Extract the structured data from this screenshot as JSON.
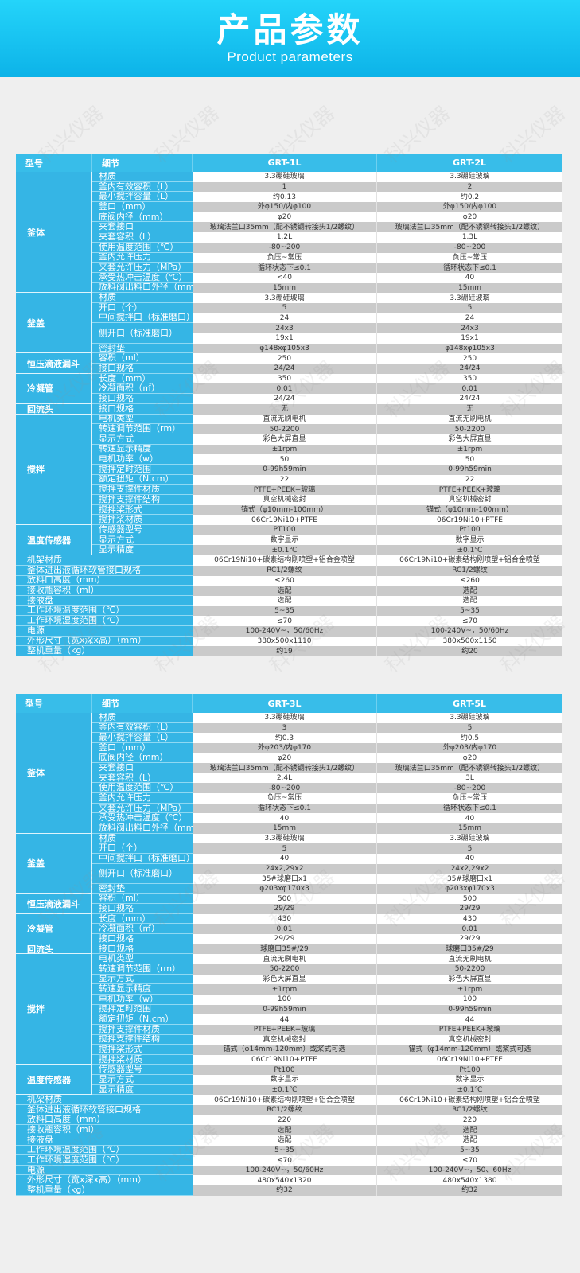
{
  "banner": {
    "title": "产品参数",
    "subtitle": "Product parameters"
  },
  "watermark": "科兴仪器",
  "colors": {
    "banner": "#1fc6f2",
    "header": "#38bde9",
    "label_cell": "#35b5e5",
    "gray_row": "#cacaca",
    "background": "#efefef"
  },
  "tables": [
    {
      "header": {
        "model": "型号",
        "detail": "细节",
        "products": [
          "GRT-1L",
          "GRT-2L"
        ]
      },
      "groups": [
        {
          "name": "釜体",
          "rows": [
            {
              "label": "材质",
              "values": [
                "3.3硼硅玻璃",
                "3.3硼硅玻璃"
              ]
            },
            {
              "label": "釜内有效容积（L）",
              "values": [
                "1",
                "2"
              ]
            },
            {
              "label": "最小搅拌容量（L）",
              "values": [
                "约0.13",
                "约0.2"
              ]
            },
            {
              "label": "釜口（mm）",
              "values": [
                "外φ150/内φ100",
                "外φ150/内φ100"
              ]
            },
            {
              "label": "底阀内径（mm）",
              "values": [
                "φ20",
                "φ20"
              ]
            },
            {
              "label": "夹套接口",
              "values": [
                "玻璃法兰口35mm（配不锈钢转接头1/2螺纹）",
                "玻璃法兰口35mm（配不锈钢转接头1/2螺纹）"
              ]
            },
            {
              "label": "夹套容积（L）",
              "values": [
                "1.2L",
                "1.3L"
              ]
            },
            {
              "label": "使用温度范围（℃）",
              "values": [
                "-80~200",
                "-80~200"
              ]
            },
            {
              "label": "釜内允许压力",
              "values": [
                "负压~常压",
                "负压~常压"
              ]
            },
            {
              "label": "夹套允许压力（MPa）",
              "values": [
                "循环状态下≤0.1",
                "循环状态下≤0.1"
              ]
            },
            {
              "label": "承受热冲击温度（℃）",
              "values": [
                "<40",
                "40"
              ]
            },
            {
              "label": "放料阀出料口外径（mm）",
              "values": [
                "15mm",
                "15mm"
              ]
            }
          ]
        },
        {
          "name": "釜盖",
          "rows": [
            {
              "label": "材质",
              "values": [
                "3.3硼硅玻璃",
                "3.3硼硅玻璃"
              ]
            },
            {
              "label": "开口（个）",
              "values": [
                "5",
                "5"
              ]
            },
            {
              "label": "中间搅拌口（标准磨口）",
              "values": [
                "24",
                "24"
              ]
            },
            {
              "label": "侧开口（标准磨口）",
              "values": [
                [
                  "24x3",
                  "19x1"
                ],
                [
                  "24x3",
                  "19x1"
                ]
              ]
            },
            {
              "label": "密封垫",
              "values": [
                "φ148xφ105x3",
                "φ148xφ105x3"
              ]
            }
          ]
        },
        {
          "name": "恒压滴液漏斗",
          "rows": [
            {
              "label": "容积（ml）",
              "values": [
                "250",
                "250"
              ]
            },
            {
              "label": "接口规格",
              "values": [
                "24/24",
                "24/24"
              ]
            }
          ]
        },
        {
          "name": "冷凝管",
          "rows": [
            {
              "label": "长度（mm）",
              "values": [
                "350",
                "350"
              ]
            },
            {
              "label": "冷凝面积（㎡）",
              "values": [
                "0.01",
                "0.01"
              ]
            },
            {
              "label": "接口规格",
              "values": [
                "24/24",
                "24/24"
              ]
            }
          ]
        },
        {
          "name": "回流头",
          "rows": [
            {
              "label": "接口规格",
              "values": [
                "无",
                "无"
              ]
            }
          ]
        },
        {
          "name": "搅拌",
          "rows": [
            {
              "label": "电机类型",
              "values": [
                "直流无刷电机",
                "直流无刷电机"
              ]
            },
            {
              "label": "转速调节范围（rm）",
              "values": [
                "50-2200",
                "50-2200"
              ]
            },
            {
              "label": "显示方式",
              "values": [
                "彩色大屏直显",
                "彩色大屏直显"
              ]
            },
            {
              "label": "转速显示精度",
              "values": [
                "±1rpm",
                "±1rpm"
              ]
            },
            {
              "label": "电机功率（w）",
              "values": [
                "50",
                "50"
              ]
            },
            {
              "label": "搅拌定时范围",
              "values": [
                "0-99h59min",
                "0-99h59min"
              ]
            },
            {
              "label": "额定扭矩（N.cm）",
              "values": [
                "22",
                "22"
              ]
            },
            {
              "label": "搅拌支撑件材质",
              "values": [
                "PTFE+PEEK+玻璃",
                "PTFE+PEEK+玻璃"
              ]
            },
            {
              "label": "搅拌支撑件结构",
              "values": [
                "真空机械密封",
                "真空机械密封"
              ]
            },
            {
              "label": "搅拌桨形式",
              "values": [
                "锚式（φ10mm-100mm）",
                "锚式（φ10mm-100mm）"
              ]
            },
            {
              "label": "搅拌桨材质",
              "values": [
                "06Cr19Ni10+PTFE",
                "06Cr19Ni10+PTFE"
              ]
            }
          ]
        },
        {
          "name": "温度传感器",
          "rows": [
            {
              "label": "传感器型号",
              "values": [
                "PT100",
                "Pt100"
              ]
            },
            {
              "label": "显示方式",
              "values": [
                "数字显示",
                "数字显示"
              ]
            },
            {
              "label": "显示精度",
              "values": [
                "±0.1℃",
                "±0.1℃"
              ]
            }
          ]
        },
        {
          "name": "",
          "rows": [
            {
              "label": "机架材质",
              "values": [
                "06Cr19Ni10+碳素结构刚喷塑+铝合金喷塑",
                "06Cr19Ni10+碳素结构刚喷塑+铝合金喷塑"
              ]
            },
            {
              "label": "釜体进出液循环软管接口规格",
              "values": [
                "RC1/2螺纹",
                "RC1/2螺纹"
              ]
            },
            {
              "label": "放料口高度（mm）",
              "values": [
                "≤260",
                "≤260"
              ]
            },
            {
              "label": "接收瓶容积（ml）",
              "values": [
                "选配",
                "选配"
              ]
            },
            {
              "label": "接液盘",
              "values": [
                "选配",
                "选配"
              ]
            },
            {
              "label": "工作环境温度范围（℃）",
              "values": [
                "5~35",
                "5~35"
              ]
            },
            {
              "label": "工作环境湿度范围（℃）",
              "values": [
                "≤70",
                "≤70"
              ]
            },
            {
              "label": "电源",
              "values": [
                "100-240V~，50/60Hz",
                "100-240V~，50/60Hz"
              ]
            },
            {
              "label": "外形尺寸（宽x深x高）（mm）",
              "values": [
                "380x500x1110",
                "380x500x1150"
              ]
            },
            {
              "label": "整机重量（kg）",
              "values": [
                "约19",
                "约20"
              ]
            }
          ]
        }
      ]
    },
    {
      "header": {
        "model": "型号",
        "detail": "细节",
        "products": [
          "GRT-3L",
          "GRT-5L"
        ]
      },
      "groups": [
        {
          "name": "釜体",
          "rows": [
            {
              "label": "材质",
              "values": [
                "3.3硼硅玻璃",
                "3.3硼硅玻璃"
              ]
            },
            {
              "label": "釜内有效容积（L）",
              "values": [
                "3",
                "5"
              ]
            },
            {
              "label": "最小搅拌容量（L）",
              "values": [
                "约0.3",
                "约0.5"
              ]
            },
            {
              "label": "釜口（mm）",
              "values": [
                "外φ203/内φ170",
                "外φ203/内φ170"
              ]
            },
            {
              "label": "底阀内径（mm）",
              "values": [
                "φ20",
                "φ20"
              ]
            },
            {
              "label": "夹套接口",
              "values": [
                "玻璃法兰口35mm（配不锈钢转接头1/2螺纹）",
                "玻璃法兰口35mm（配不锈钢转接头1/2螺纹）"
              ]
            },
            {
              "label": "夹套容积（L）",
              "values": [
                "2.4L",
                "3L"
              ]
            },
            {
              "label": "使用温度范围（℃）",
              "values": [
                "-80~200",
                "-80~200"
              ]
            },
            {
              "label": "釜内允许压力",
              "values": [
                "负压~常压",
                "负压~常压"
              ]
            },
            {
              "label": "夹套允许压力（MPa）",
              "values": [
                "循环状态下≤0.1",
                "循环状态下≤0.1"
              ]
            },
            {
              "label": "承受热冲击温度（℃）",
              "values": [
                "40",
                "40"
              ]
            },
            {
              "label": "放料阀出料口外径（mm）",
              "values": [
                "15mm",
                "15mm"
              ]
            }
          ]
        },
        {
          "name": "釜盖",
          "rows": [
            {
              "label": "材质",
              "values": [
                "3.3硼硅玻璃",
                "3.3硼硅玻璃"
              ]
            },
            {
              "label": "开口（个）",
              "values": [
                "5",
                "5"
              ]
            },
            {
              "label": "中间搅拌口（标准磨口）",
              "values": [
                "40",
                "40"
              ]
            },
            {
              "label": "侧开口（标准磨口）",
              "values": [
                [
                  "24x2,29x2",
                  "35#球磨口x1"
                ],
                [
                  "24x2,29x2",
                  "35#球磨口x1"
                ]
              ]
            },
            {
              "label": "密封垫",
              "values": [
                "φ203xφ170x3",
                "φ203xφ170x3"
              ]
            }
          ]
        },
        {
          "name": "恒压滴液漏斗",
          "rows": [
            {
              "label": "容积（ml）",
              "values": [
                "500",
                "500"
              ]
            },
            {
              "label": "接口规格",
              "values": [
                "29/29",
                "29/29"
              ]
            }
          ]
        },
        {
          "name": "冷凝管",
          "rows": [
            {
              "label": "长度（mm）",
              "values": [
                "430",
                "430"
              ]
            },
            {
              "label": "冷凝面积（㎡）",
              "values": [
                "0.01",
                "0.01"
              ]
            },
            {
              "label": "接口规格",
              "values": [
                "29/29",
                "29/29"
              ]
            }
          ]
        },
        {
          "name": "回流头",
          "rows": [
            {
              "label": "接口规格",
              "values": [
                "球磨口35#/29",
                "球磨口35#/29"
              ]
            }
          ]
        },
        {
          "name": "搅拌",
          "rows": [
            {
              "label": "电机类型",
              "values": [
                "直流无刷电机",
                "直流无刷电机"
              ]
            },
            {
              "label": "转速调节范围（rm）",
              "values": [
                "50-2200",
                "50-2200"
              ]
            },
            {
              "label": "显示方式",
              "values": [
                "彩色大屏直显",
                "彩色大屏直显"
              ]
            },
            {
              "label": "转速显示精度",
              "values": [
                "±1rpm",
                "±1rpm"
              ]
            },
            {
              "label": "电机功率（w）",
              "values": [
                "100",
                "100"
              ]
            },
            {
              "label": "搅拌定时范围",
              "values": [
                "0-99h59min",
                "0-99h59min"
              ]
            },
            {
              "label": "额定扭矩（N.cm）",
              "values": [
                "44",
                "44"
              ]
            },
            {
              "label": "搅拌支撑件材质",
              "values": [
                "PTFE+PEEK+玻璃",
                "PTFE+PEEK+玻璃"
              ]
            },
            {
              "label": "搅拌支撑件结构",
              "values": [
                "真空机械密封",
                "真空机械密封"
              ]
            },
            {
              "label": "搅拌桨形式",
              "values": [
                "锚式（φ14mm-120mm）或桨式可选",
                "锚式（φ14mm-120mm）或桨式可选"
              ]
            },
            {
              "label": "搅拌桨材质",
              "values": [
                "06Cr19Ni10+PTFE",
                "06Cr19Ni10+PTFE"
              ]
            }
          ]
        },
        {
          "name": "温度传感器",
          "rows": [
            {
              "label": "传感器型号",
              "values": [
                "Pt100",
                "Pt100"
              ]
            },
            {
              "label": "显示方式",
              "values": [
                "数字显示",
                "数字显示"
              ]
            },
            {
              "label": "显示精度",
              "values": [
                "±0.1℃",
                "±0.1℃"
              ]
            }
          ]
        },
        {
          "name": "",
          "rows": [
            {
              "label": "机架材质",
              "values": [
                "06Cr19Ni10+碳素结构刚喷塑+铝合金喷塑",
                "06Cr19Ni10+碳素结构刚喷塑+铝合金喷塑"
              ]
            },
            {
              "label": "釜体进出液循环软管接口规格",
              "values": [
                "RC1/2螺纹",
                "RC1/2螺纹"
              ]
            },
            {
              "label": "放料口高度（mm）",
              "values": [
                "220",
                "220"
              ]
            },
            {
              "label": "接收瓶容积（ml）",
              "values": [
                "选配",
                "选配"
              ]
            },
            {
              "label": "接液盘",
              "values": [
                "选配",
                "选配"
              ]
            },
            {
              "label": "工作环境温度范围（℃）",
              "values": [
                "5~35",
                "5~35"
              ]
            },
            {
              "label": "工作环境湿度范围（℃）",
              "values": [
                "≤70",
                "≤70"
              ]
            },
            {
              "label": "电源",
              "values": [
                "100-240V~，50/60Hz",
                "100-240V~，50、60Hz"
              ]
            },
            {
              "label": "外形尺寸（宽x深x高）（mm）",
              "values": [
                "480x540x1320",
                "480x540x1380"
              ]
            },
            {
              "label": "整机重量（kg）",
              "values": [
                "约32",
                "约32"
              ]
            }
          ]
        }
      ]
    }
  ]
}
